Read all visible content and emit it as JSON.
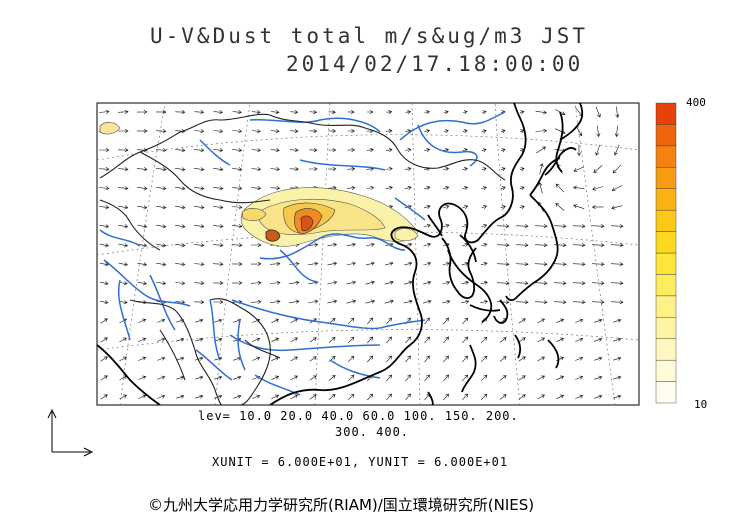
{
  "title": {
    "line1": "U-V&Dust total m/s&ug/m3 JST",
    "line2": "2014/02/17.18:00:00"
  },
  "levels_text": {
    "line1": "lev= 10.0 20.0 40.0 60.0 100. 150. 200.",
    "line2": "300. 400."
  },
  "units_text": "XUNIT = 6.000E+01, YUNIT = 6.000E+01",
  "copyright": "©九州大学応用力学研究所(RIAM)/国立環境研究所(NIES)",
  "colorbar": {
    "max_label": "400",
    "min_label": "10",
    "colors": [
      "#fefdf0",
      "#fefbd8",
      "#fef8c0",
      "#fef5a4",
      "#fef186",
      "#feec5e",
      "#fde53a",
      "#fcd91f",
      "#fbc817",
      "#f9b414",
      "#f79c12",
      "#f48210",
      "#f0640e",
      "#e8420b"
    ]
  },
  "palette": {
    "land_line": "#000000",
    "river": "#2f6fd6",
    "dust_low": "#fbf2a9",
    "dust_mid": "#f7d86a",
    "dust_high": "#e9701a",
    "arrow": "#111111"
  }
}
